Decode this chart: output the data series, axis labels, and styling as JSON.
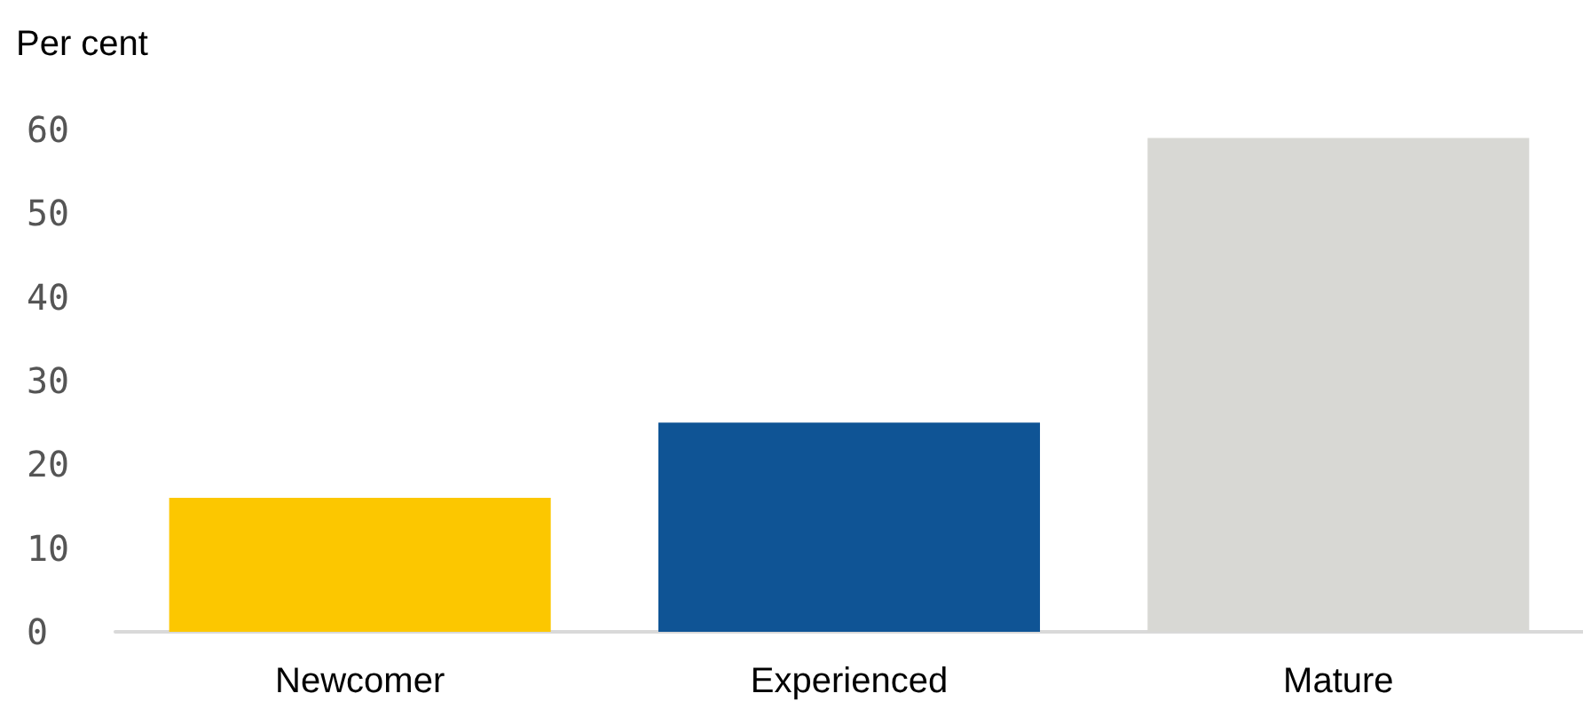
{
  "chart_data": {
    "type": "bar",
    "ylabel": "Per cent",
    "categories": [
      "Newcomer",
      "Experienced",
      "Mature"
    ],
    "values": [
      16,
      25,
      59
    ],
    "colors": [
      "#fcc700",
      "#0f5495",
      "#d8d8d4"
    ],
    "ylim": [
      0,
      60
    ],
    "yticks": [
      0,
      10,
      20,
      30,
      40,
      50,
      60
    ],
    "grid": false
  }
}
